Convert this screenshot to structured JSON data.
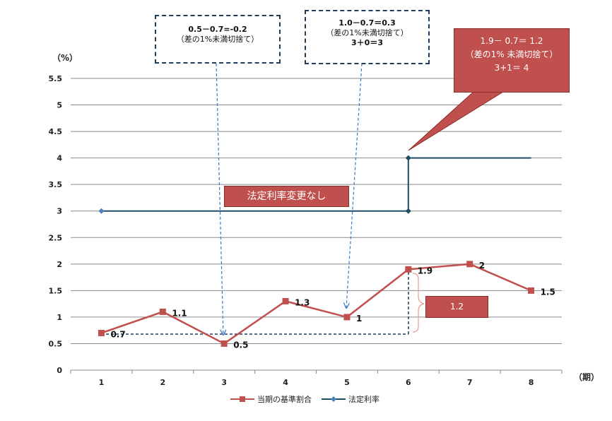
{
  "chart_data": {
    "type": "line",
    "x": [
      1,
      2,
      3,
      4,
      5,
      6,
      7,
      8
    ],
    "xlabel": "（期）",
    "ylabel": "（%）",
    "ylim": [
      0,
      5.5
    ],
    "yticks": [
      "0",
      "0.5",
      "1",
      "1.5",
      "2",
      "2.5",
      "3",
      "3.5",
      "4",
      "4.5",
      "5",
      "5.5"
    ],
    "grid": true,
    "legend_position": "bottom",
    "series": [
      {
        "name": "当期の基準割合",
        "color": "#c0504d",
        "marker": "square",
        "x": [
          1,
          2,
          3,
          4,
          5,
          6,
          7,
          8
        ],
        "values": [
          0.7,
          1.1,
          0.5,
          1.3,
          1,
          1.9,
          2,
          1.5
        ],
        "labels": [
          "0.7",
          "1.1",
          "0.5",
          "1.3",
          "1",
          "1.9",
          "2",
          "1.5"
        ]
      },
      {
        "name": "法定利率",
        "color": "#1f4e63",
        "marker": "diamond",
        "x": [
          1,
          6,
          6,
          7,
          8
        ],
        "values": [
          3,
          3,
          4,
          4,
          4
        ]
      }
    ],
    "annotations": {
      "callout_left": [
        "0.5－0.7=-0.2",
        "（差の1%未満切捨て）"
      ],
      "callout_mid": [
        "1.0－0.7＝0.3",
        "（差の1%未満切捨て）",
        "3＋0＝3"
      ],
      "callout_red": [
        "1.9－ 0.7＝ 1.2",
        "（差の1% 未満切捨て）",
        "3+1＝ 4"
      ],
      "no_change": "法定利率変更なし",
      "diff": "1.2"
    }
  }
}
